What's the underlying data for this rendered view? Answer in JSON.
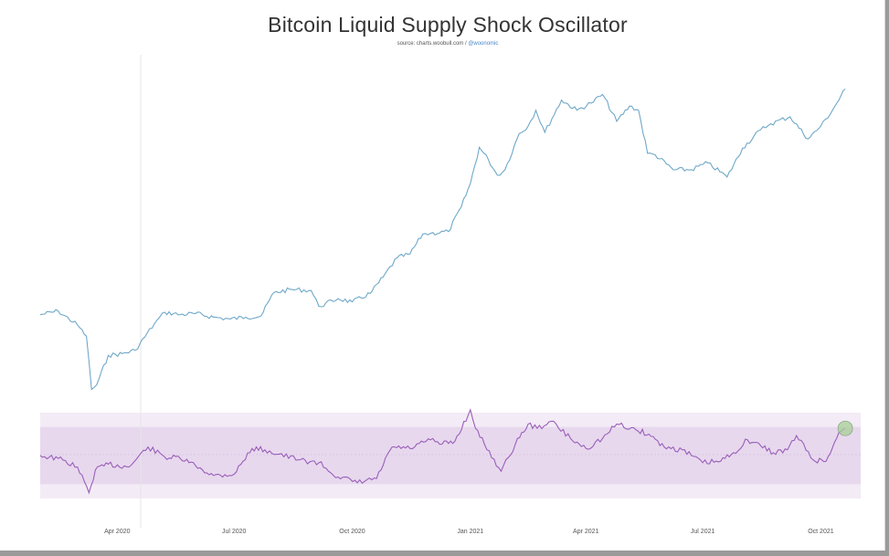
{
  "title": "Bitcoin Liquid Supply Shock Oscillator",
  "source": {
    "prefix": "source: charts.woobull.com / ",
    "handle": "@woonomic"
  },
  "colors": {
    "price_line": "#6fa8c9",
    "oscillator_line": "#9a5fb8",
    "band_outer": "#f3ebf6",
    "band_inner": "#e7d8ee",
    "marker": "#a7cf97"
  },
  "chart_data": [
    {
      "type": "line",
      "title": "",
      "scale": "log",
      "xlabel": "",
      "ylabel": "",
      "x_ticks": [
        "Apr 2020",
        "Jul 2020",
        "Oct 2020",
        "Jan 2021",
        "Apr 2021",
        "Jul 2021",
        "Oct 2021"
      ],
      "y_tick_labels_visible": false,
      "xlim": [
        "2020-02-01",
        "2021-11-01"
      ],
      "ylim": [
        4500,
        70000
      ],
      "series": [
        {
          "x": [
            "2020-02-01",
            "2020-02-15",
            "2020-03-01",
            "2020-03-08",
            "2020-03-12",
            "2020-03-16",
            "2020-03-25",
            "2020-04-05",
            "2020-04-15",
            "2020-04-30",
            "2020-05-08",
            "2020-05-20",
            "2020-06-01",
            "2020-06-15",
            "2020-06-28",
            "2020-07-10",
            "2020-07-22",
            "2020-08-01",
            "2020-08-15",
            "2020-08-30",
            "2020-09-05",
            "2020-09-20",
            "2020-10-01",
            "2020-10-15",
            "2020-10-25",
            "2020-11-05",
            "2020-11-15",
            "2020-11-25",
            "2020-12-01",
            "2020-12-15",
            "2020-12-25",
            "2021-01-01",
            "2021-01-08",
            "2021-01-15",
            "2021-01-22",
            "2021-01-28",
            "2021-02-08",
            "2021-02-15",
            "2021-02-21",
            "2021-02-28",
            "2021-03-13",
            "2021-03-25",
            "2021-04-05",
            "2021-04-14",
            "2021-04-25",
            "2021-05-05",
            "2021-05-12",
            "2021-05-19",
            "2021-05-25",
            "2021-06-08",
            "2021-06-22",
            "2021-07-05",
            "2021-07-20",
            "2021-08-01",
            "2021-08-15",
            "2021-08-23",
            "2021-09-07",
            "2021-09-21",
            "2021-10-01",
            "2021-10-10",
            "2021-10-20"
          ],
          "values": [
            9500,
            9800,
            8700,
            7900,
            5000,
            5200,
            6700,
            6800,
            7000,
            8800,
            9700,
            9500,
            9600,
            9300,
            9150,
            9300,
            9400,
            11500,
            11800,
            11700,
            10200,
            10900,
            10600,
            11400,
            13100,
            15500,
            16000,
            19000,
            19100,
            19400,
            24000,
            29300,
            40000,
            36000,
            31500,
            33000,
            45000,
            48000,
            55000,
            45500,
            60000,
            55000,
            58500,
            63000,
            50000,
            57000,
            55000,
            38000,
            37500,
            33000,
            33000,
            35000,
            31000,
            39700,
            46500,
            49000,
            52000,
            43000,
            48000,
            55000,
            66000
          ]
        }
      ]
    },
    {
      "type": "area",
      "title": "",
      "xlabel": "",
      "ylabel": "",
      "x_ticks": [
        "Apr 2020",
        "Jul 2020",
        "Oct 2020",
        "Jan 2021",
        "Apr 2021",
        "Jul 2021",
        "Oct 2021"
      ],
      "xlim": [
        "2020-02-01",
        "2021-11-01"
      ],
      "ylim": [
        -1.5,
        1.5
      ],
      "bands": [
        {
          "from": -1.5,
          "to": 1.5,
          "level": "outer"
        },
        {
          "from": -1.0,
          "to": 1.0,
          "level": "inner"
        }
      ],
      "series": [
        {
          "x": [
            "2020-02-01",
            "2020-02-15",
            "2020-03-01",
            "2020-03-10",
            "2020-03-15",
            "2020-03-25",
            "2020-04-10",
            "2020-04-25",
            "2020-05-08",
            "2020-05-20",
            "2020-06-01",
            "2020-06-15",
            "2020-07-01",
            "2020-07-15",
            "2020-07-25",
            "2020-08-05",
            "2020-08-20",
            "2020-09-05",
            "2020-09-20",
            "2020-10-05",
            "2020-10-20",
            "2020-11-01",
            "2020-11-15",
            "2020-12-01",
            "2020-12-10",
            "2020-12-20",
            "2021-01-01",
            "2021-01-05",
            "2021-01-12",
            "2021-01-25",
            "2021-02-05",
            "2021-02-15",
            "2021-02-22",
            "2021-03-05",
            "2021-03-20",
            "2021-04-01",
            "2021-04-14",
            "2021-04-25",
            "2021-05-10",
            "2021-05-20",
            "2021-06-01",
            "2021-06-15",
            "2021-07-01",
            "2021-07-15",
            "2021-07-25",
            "2021-08-05",
            "2021-08-15",
            "2021-08-25",
            "2021-09-05",
            "2021-09-12",
            "2021-09-25",
            "2021-10-05",
            "2021-10-15",
            "2021-10-20"
          ],
          "values": [
            0.0,
            -0.1,
            -0.4,
            -1.3,
            -0.5,
            -0.3,
            -0.4,
            0.3,
            -0.05,
            -0.1,
            -0.35,
            -0.7,
            -0.65,
            0.25,
            0.2,
            0.05,
            -0.15,
            -0.25,
            -0.75,
            -0.95,
            -0.8,
            0.3,
            0.25,
            0.55,
            0.4,
            0.5,
            1.6,
            0.95,
            0.4,
            -0.55,
            0.4,
            1.1,
            0.95,
            1.2,
            0.6,
            0.25,
            0.6,
            1.1,
            0.9,
            0.75,
            0.3,
            0.2,
            -0.25,
            -0.2,
            0.1,
            0.55,
            0.35,
            0.1,
            0.2,
            0.7,
            -0.15,
            -0.2,
            0.8,
            0.95
          ]
        }
      ],
      "marker_at": "2021-10-20"
    }
  ]
}
